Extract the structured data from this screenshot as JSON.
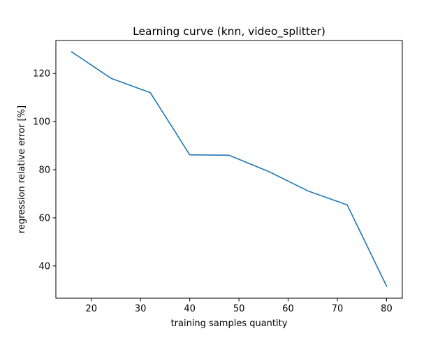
{
  "chart_data": {
    "type": "line",
    "title": "Learning curve (knn, video_splitter)",
    "xlabel": "training samples quantity",
    "ylabel": "regression relative error [%]",
    "xlim": [
      12.8,
      83.2
    ],
    "ylim": [
      26.6,
      133.7
    ],
    "xticks": [
      20,
      30,
      40,
      50,
      60,
      70,
      80
    ],
    "yticks": [
      40,
      60,
      80,
      100,
      120
    ],
    "grid": false,
    "series": [
      {
        "color": "#1f77b4",
        "x": [
          16,
          24,
          32,
          40,
          48,
          56,
          64,
          72,
          80
        ],
        "y": [
          129.0,
          118.0,
          112.0,
          86.2,
          86.0,
          79.3,
          71.2,
          65.4,
          31.6
        ]
      }
    ]
  }
}
